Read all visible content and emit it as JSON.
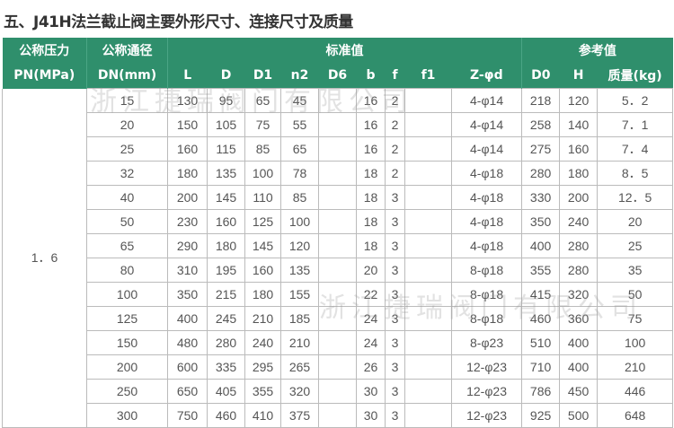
{
  "title": "五、J41H法兰截止阀主要外形尺寸、连接尺寸及质量",
  "header": {
    "pn_label": "公称压力",
    "pn_unit": "PN(MPa)",
    "dn_label": "公称通径",
    "dn_unit": "DN(mm)",
    "standard_group": "标准值",
    "reference_group": "参考值",
    "columns": [
      "L",
      "D",
      "D1",
      "n2",
      "D6",
      "b",
      "f",
      "f1",
      "Z-φd",
      "D0",
      "H",
      "质量(kg)"
    ]
  },
  "pn_value": "1．6",
  "rows": [
    [
      "15",
      "130",
      "95",
      "65",
      "45",
      "",
      "16",
      "2",
      "",
      "4-φ14",
      "218",
      "120",
      "5．2"
    ],
    [
      "20",
      "150",
      "105",
      "75",
      "55",
      "",
      "16",
      "2",
      "",
      "4-φ14",
      "258",
      "140",
      "7．1"
    ],
    [
      "25",
      "160",
      "115",
      "85",
      "65",
      "",
      "16",
      "2",
      "",
      "4-φ14",
      "275",
      "160",
      "7．4"
    ],
    [
      "32",
      "180",
      "135",
      "100",
      "78",
      "",
      "18",
      "2",
      "",
      "4-φ18",
      "280",
      "180",
      "8．5"
    ],
    [
      "40",
      "200",
      "145",
      "110",
      "85",
      "",
      "18",
      "3",
      "",
      "4-φ18",
      "330",
      "200",
      "12．5"
    ],
    [
      "50",
      "230",
      "160",
      "125",
      "100",
      "",
      "18",
      "3",
      "",
      "4-φ18",
      "350",
      "240",
      "20"
    ],
    [
      "65",
      "290",
      "180",
      "145",
      "120",
      "",
      "18",
      "3",
      "",
      "4-φ18",
      "400",
      "280",
      "25"
    ],
    [
      "80",
      "310",
      "195",
      "160",
      "135",
      "",
      "20",
      "3",
      "",
      "8-φ18",
      "355",
      "280",
      "35"
    ],
    [
      "100",
      "350",
      "215",
      "180",
      "155",
      "",
      "22",
      "3",
      "",
      "8-φ18",
      "415",
      "320",
      "50"
    ],
    [
      "125",
      "400",
      "245",
      "210",
      "185",
      "",
      "24",
      "3",
      "",
      "8-φ18",
      "460",
      "360",
      "75"
    ],
    [
      "150",
      "480",
      "280",
      "240",
      "210",
      "",
      "24",
      "3",
      "",
      "8-φ23",
      "510",
      "400",
      "100"
    ],
    [
      "200",
      "600",
      "335",
      "295",
      "265",
      "",
      "26",
      "3",
      "",
      "12-φ23",
      "710",
      "400",
      "210"
    ],
    [
      "250",
      "650",
      "405",
      "355",
      "320",
      "",
      "30",
      "3",
      "",
      "12-φ23",
      "786",
      "450",
      "446"
    ],
    [
      "300",
      "750",
      "460",
      "410",
      "375",
      "",
      "30",
      "3",
      "",
      "12-φ23",
      "925",
      "500",
      "648"
    ]
  ],
  "watermark": "浙江捷瑞阀门有限公司",
  "colors": {
    "header_bg": "#2f8f6c",
    "header_text": "#ffffff"
  }
}
